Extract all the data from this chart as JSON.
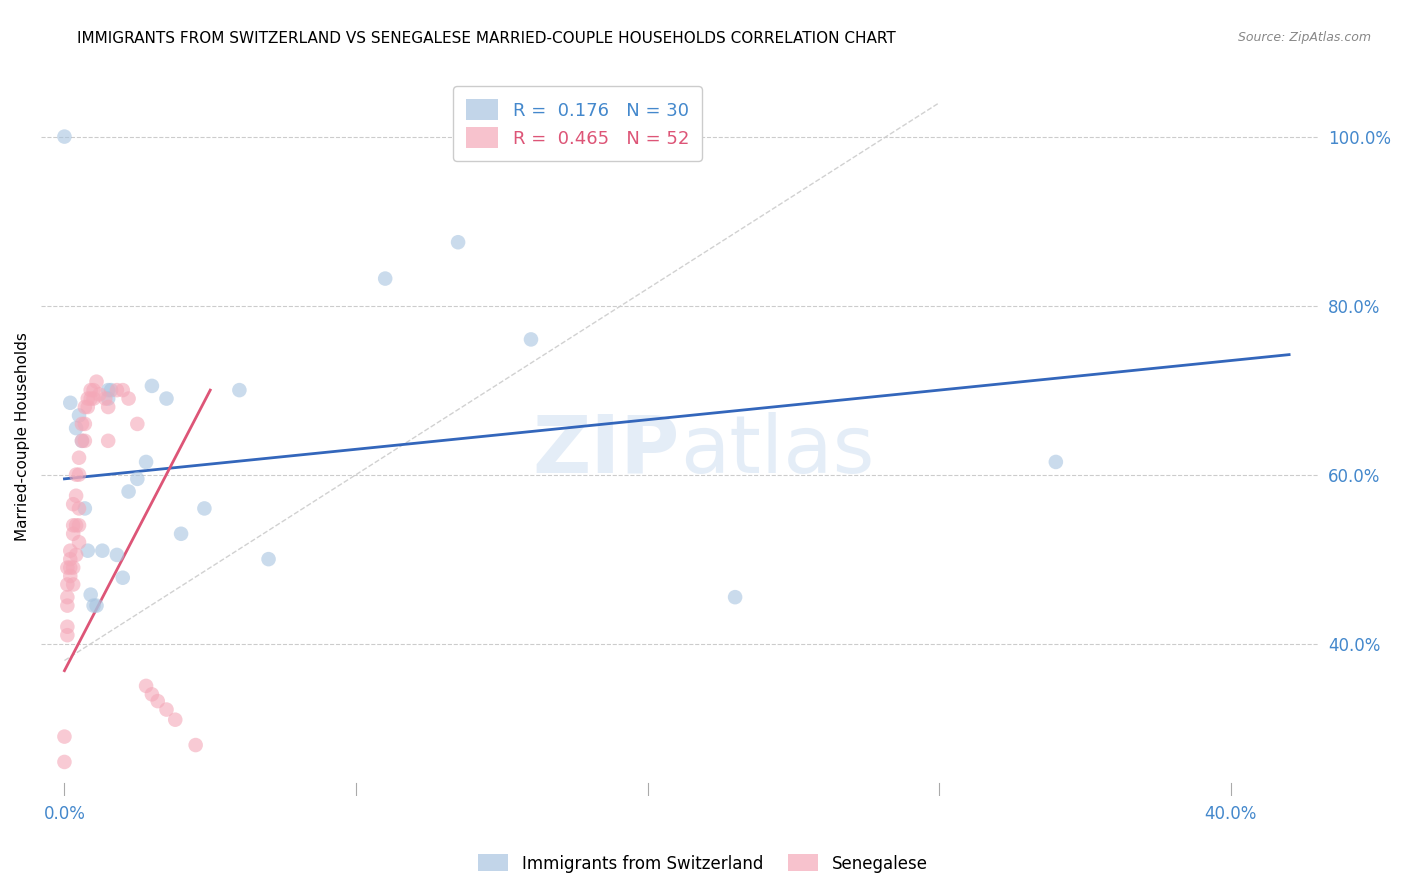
{
  "title": "IMMIGRANTS FROM SWITZERLAND VS SENEGALESE MARRIED-COUPLE HOUSEHOLDS CORRELATION CHART",
  "source": "Source: ZipAtlas.com",
  "ylabel": "Married-couple Households",
  "legend_blue_r": "0.176",
  "legend_blue_n": "30",
  "legend_pink_r": "0.465",
  "legend_pink_n": "52",
  "x_ticks": [
    0.0,
    0.1,
    0.2,
    0.3,
    0.4
  ],
  "x_tick_labels": [
    "0.0%",
    "",
    "",
    "",
    "40.0%"
  ],
  "y_ticks_right": [
    0.4,
    0.6,
    0.8,
    1.0
  ],
  "y_tick_labels_right": [
    "40.0%",
    "60.0%",
    "80.0%",
    "100.0%"
  ],
  "xlim": [
    -0.008,
    0.43
  ],
  "ylim": [
    0.22,
    1.07
  ],
  "blue_color": "#a8c4e0",
  "pink_color": "#f4a8b8",
  "blue_line_color": "#3366bb",
  "pink_line_color": "#dd5577",
  "axis_color": "#4488cc",
  "grid_color": "#cccccc",
  "watermark_color": "#c5d8ee",
  "background_color": "#ffffff",
  "blue_scatter_x": [
    0.0,
    0.002,
    0.004,
    0.005,
    0.006,
    0.007,
    0.008,
    0.009,
    0.01,
    0.011,
    0.013,
    0.015,
    0.016,
    0.018,
    0.02,
    0.022,
    0.025,
    0.028,
    0.03,
    0.035,
    0.04,
    0.048,
    0.06,
    0.07,
    0.11,
    0.135,
    0.16,
    0.23,
    0.34,
    0.015
  ],
  "blue_scatter_y": [
    1.0,
    0.685,
    0.655,
    0.67,
    0.64,
    0.56,
    0.51,
    0.458,
    0.445,
    0.445,
    0.51,
    0.69,
    0.7,
    0.505,
    0.478,
    0.58,
    0.595,
    0.615,
    0.705,
    0.69,
    0.53,
    0.56,
    0.7,
    0.5,
    0.832,
    0.875,
    0.76,
    0.455,
    0.615,
    0.7
  ],
  "pink_scatter_x": [
    0.0,
    0.0,
    0.001,
    0.001,
    0.001,
    0.001,
    0.001,
    0.001,
    0.002,
    0.002,
    0.002,
    0.002,
    0.003,
    0.003,
    0.003,
    0.003,
    0.003,
    0.004,
    0.004,
    0.004,
    0.004,
    0.005,
    0.005,
    0.005,
    0.005,
    0.005,
    0.006,
    0.006,
    0.007,
    0.007,
    0.007,
    0.008,
    0.008,
    0.009,
    0.009,
    0.01,
    0.01,
    0.011,
    0.012,
    0.014,
    0.015,
    0.015,
    0.018,
    0.02,
    0.022,
    0.025,
    0.028,
    0.03,
    0.032,
    0.035,
    0.038,
    0.045
  ],
  "pink_scatter_y": [
    0.29,
    0.26,
    0.49,
    0.47,
    0.455,
    0.445,
    0.42,
    0.41,
    0.51,
    0.5,
    0.49,
    0.48,
    0.565,
    0.54,
    0.53,
    0.49,
    0.47,
    0.6,
    0.575,
    0.54,
    0.505,
    0.62,
    0.6,
    0.56,
    0.54,
    0.52,
    0.66,
    0.64,
    0.68,
    0.66,
    0.64,
    0.69,
    0.68,
    0.7,
    0.69,
    0.7,
    0.69,
    0.71,
    0.695,
    0.69,
    0.68,
    0.64,
    0.7,
    0.7,
    0.69,
    0.66,
    0.35,
    0.34,
    0.332,
    0.322,
    0.31,
    0.28
  ],
  "blue_line_x0": 0.0,
  "blue_line_x1": 0.42,
  "blue_line_y0": 0.595,
  "blue_line_y1": 0.742,
  "pink_line_x0": 0.0,
  "pink_line_x1": 0.05,
  "pink_line_y0": 0.368,
  "pink_line_y1": 0.7,
  "ref_line_x0": 0.0,
  "ref_line_x1": 0.3,
  "ref_line_y0": 0.38,
  "ref_line_y1": 1.04
}
